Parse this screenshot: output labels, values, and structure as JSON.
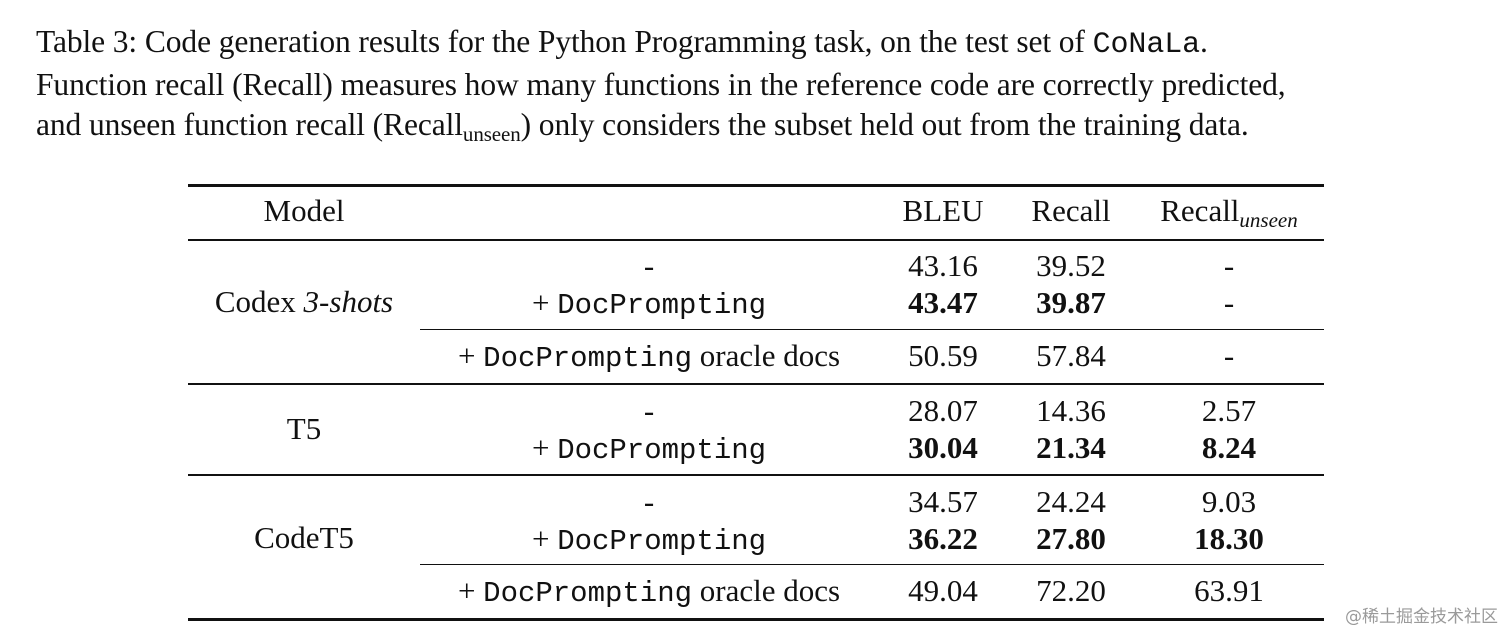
{
  "caption": {
    "line1_text": "Table 3: Code generation results for the Python Programming task, on the test set of ",
    "line1_dataset": "CoNaLa",
    "line1_end": ".",
    "line2": "Function recall (Recall) measures how many functions in the reference code are correctly predicted,",
    "line3_a": "and unseen function recall (Recall",
    "line3_sub": "unseen",
    "line3_b": ") only considers the subset held out from the training data."
  },
  "table": {
    "headers": {
      "model": "Model",
      "bleu": "BLEU",
      "recall": "Recall",
      "recall_unseen_base": "Recall",
      "recall_unseen_sub": "unseen"
    },
    "groups": [
      {
        "model_name": "Codex ",
        "model_suffix": "3-shots",
        "rows": [
          {
            "method_plus": "",
            "method_mono": "",
            "method_rest": "-",
            "bleu": "43.16",
            "recall": "39.52",
            "recall_unseen": "-",
            "bold": false
          },
          {
            "method_plus": "+ ",
            "method_mono": "DocPrompting",
            "method_rest": "",
            "bleu": "43.47",
            "recall": "39.87",
            "recall_unseen": "-",
            "bold": true
          },
          {
            "method_plus": "+ ",
            "method_mono": "DocPrompting",
            "method_rest": " oracle docs",
            "bleu": "50.59",
            "recall": "57.84",
            "recall_unseen": "-",
            "bold": false
          }
        ]
      },
      {
        "model_name": "T5",
        "model_suffix": "",
        "rows": [
          {
            "method_plus": "",
            "method_mono": "",
            "method_rest": "-",
            "bleu": "28.07",
            "recall": "14.36",
            "recall_unseen": "2.57",
            "bold": false
          },
          {
            "method_plus": "+ ",
            "method_mono": "DocPrompting",
            "method_rest": "",
            "bleu": "30.04",
            "recall": "21.34",
            "recall_unseen": "8.24",
            "bold": true
          }
        ]
      },
      {
        "model_name": "CodeT5",
        "model_suffix": "",
        "rows": [
          {
            "method_plus": "",
            "method_mono": "",
            "method_rest": "-",
            "bleu": "34.57",
            "recall": "24.24",
            "recall_unseen": "9.03",
            "bold": false
          },
          {
            "method_plus": "+ ",
            "method_mono": "DocPrompting",
            "method_rest": "",
            "bleu": "36.22",
            "recall": "27.80",
            "recall_unseen": "18.30",
            "bold": true
          },
          {
            "method_plus": "+ ",
            "method_mono": "DocPrompting",
            "method_rest": " oracle docs",
            "bleu": "49.04",
            "recall": "72.20",
            "recall_unseen": "63.91",
            "bold": false
          }
        ]
      }
    ]
  },
  "watermark": "@稀土掘金技术社区"
}
